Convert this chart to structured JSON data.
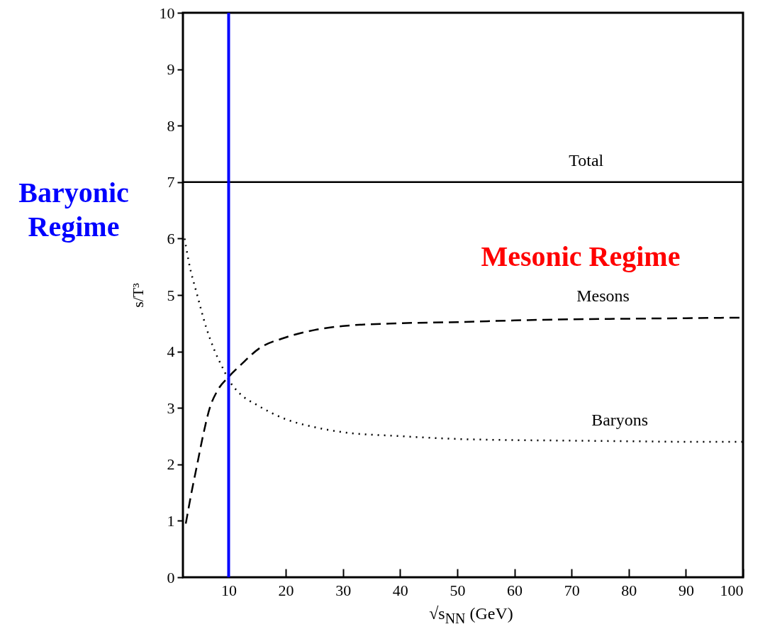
{
  "chart_data": {
    "type": "line",
    "xlabel": "√s$_{NN}$ (GeV)",
    "ylabel": "s/T³",
    "xlim": [
      2,
      100
    ],
    "ylim": [
      0,
      10
    ],
    "xticks": [
      10,
      20,
      30,
      40,
      50,
      60,
      70,
      80,
      90,
      100
    ],
    "yticks": [
      0,
      1,
      2,
      3,
      4,
      5,
      6,
      7,
      8,
      9,
      10
    ],
    "grid": false,
    "series": [
      {
        "name": "Total",
        "color": "#000000",
        "line_style": "solid",
        "x": [
          2,
          100
        ],
        "values": [
          7,
          7
        ]
      },
      {
        "name": "Mesons",
        "color": "#000000",
        "line_style": "dashed",
        "x": [
          2.5,
          3.5,
          4.5,
          5.5,
          6.7,
          8,
          10,
          12,
          15.3,
          20,
          25,
          30,
          40,
          50,
          60,
          70,
          80,
          90,
          100
        ],
        "values": [
          0.95,
          1.5,
          2,
          2.5,
          3,
          3.3,
          3.55,
          3.75,
          4.05,
          4.25,
          4.38,
          4.45,
          4.5,
          4.52,
          4.55,
          4.57,
          4.58,
          4.59,
          4.6
        ]
      },
      {
        "name": "Baryons",
        "color": "#000000",
        "line_style": "dotted",
        "x": [
          2.3,
          3,
          4.5,
          6,
          7.6,
          9,
          10,
          12,
          15,
          20,
          25,
          30,
          40,
          50,
          60,
          70,
          80,
          90,
          100
        ],
        "values": [
          6,
          5.6,
          5,
          4.45,
          4,
          3.7,
          3.5,
          3.25,
          3.05,
          2.8,
          2.66,
          2.57,
          2.5,
          2.45,
          2.43,
          2.42,
          2.41,
          2.4,
          2.4
        ]
      }
    ],
    "ref_lines": [
      {
        "axis": "x",
        "value": 10,
        "label": "Baryonic Regime",
        "color": "#0000ff"
      }
    ],
    "annotations": [
      "Mesonic Regime"
    ]
  }
}
